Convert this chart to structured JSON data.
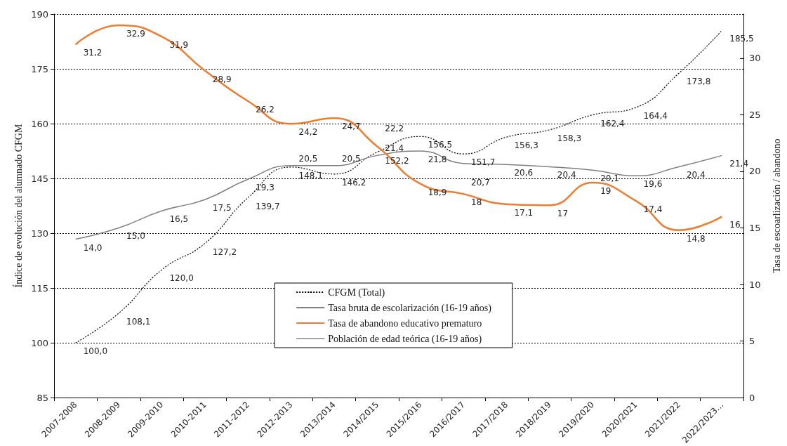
{
  "chart_data": {
    "type": "line",
    "ylabel": "Índice de evolución del alumnado CFGM",
    "y2label": "Tasa de escoarlización / abandono",
    "categories": [
      "2007-2008",
      "2008-2009",
      "2009-2010",
      "2010-2011",
      "2011-2012",
      "2012-2013",
      "2013/2014",
      "2014/2015",
      "2015/2016",
      "2016/2017",
      "2017/2018",
      "2018/2019",
      "2019/2020",
      "2020/2021",
      "2021/2022",
      "2022/2023…"
    ],
    "series": [
      {
        "name": "CFGM (Total)",
        "color": "#000000",
        "line_style": "dotted",
        "values": [
          100.0,
          108.1,
          120.0,
          127.2,
          139.7,
          148.1,
          146.2,
          152.2,
          156.5,
          151.7,
          156.3,
          158.3,
          162.4,
          164.4,
          173.8,
          185.5
        ],
        "value_labels": [
          "100,0",
          "108,1",
          "120,0",
          "127,2",
          "139,7",
          "148,1",
          "146,2",
          "152,2",
          "156,5",
          "151,7",
          "156,3",
          "158,3",
          "162,4",
          "164,4",
          "173,8",
          "185,5"
        ]
      },
      {
        "name": "Tasa bruta de escolarización (16-19 años)",
        "color": "#808080",
        "axis": "y2",
        "values": [
          14.0,
          15.0,
          16.5,
          17.5,
          19.3,
          20.5,
          20.5,
          21.4,
          21.8,
          20.7,
          20.6,
          20.4,
          20.1,
          19.6,
          20.4,
          21.4
        ],
        "value_labels": [
          "14,0",
          "15,0",
          "16,5",
          "17,5",
          "19,3",
          "20,5",
          "20,5",
          "21,4",
          "21,8",
          "20,7",
          "20,6",
          "20,4",
          "20,1",
          "19,6",
          "20,4",
          "21,4"
        ]
      },
      {
        "name": "Tasa de abandono educativo prematuro",
        "color": "#ed7d31",
        "axis": "y2",
        "values": [
          31.2,
          32.9,
          31.9,
          28.9,
          26.2,
          24.2,
          24.7,
          22.2,
          18.9,
          18,
          17.1,
          17,
          19,
          17.4,
          14.8,
          16
        ],
        "value_labels": [
          "31,2",
          "32,9",
          "31,9",
          "28,9",
          "26,2",
          "24,2",
          "24,7",
          "22,2",
          "18,9",
          "18",
          "17,1",
          "17",
          "19",
          "17,4",
          "14,8",
          "16"
        ]
      },
      {
        "name": "Población de edad teórica (16-19 años)",
        "color": "#a5a5a5",
        "axis": "y2",
        "values": [
          null,
          null,
          null,
          null,
          null,
          null,
          null,
          null,
          null,
          null,
          null,
          null,
          null,
          null,
          null,
          null
        ]
      }
    ],
    "ylim": [
      85,
      190
    ],
    "yticks": [
      85,
      100,
      115,
      130,
      145,
      160,
      175,
      190
    ],
    "y2lim": [
      0,
      33.9
    ],
    "y2ticks": [
      0,
      5,
      10,
      15,
      20,
      25,
      30
    ],
    "grid": "y",
    "legend": "bottom",
    "marker": "none"
  }
}
